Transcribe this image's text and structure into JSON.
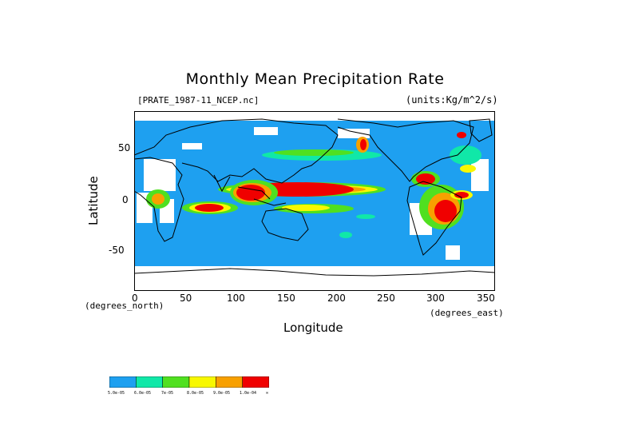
{
  "title": "Monthly Mean Precipitation Rate",
  "subtitle_left": "[PRATE_1987-11_NCEP.nc]",
  "subtitle_right": "(units:Kg/m^2/s)",
  "axes": {
    "x_label": "Longitude",
    "y_label": "Latitude",
    "x_unit": "(degrees_east)",
    "y_unit": "(degrees_north)",
    "x_ticks": [
      "0",
      "50",
      "100",
      "150",
      "200",
      "250",
      "300",
      "350"
    ],
    "y_ticks": [
      "50",
      "0",
      "-50"
    ],
    "x_range": [
      0,
      360
    ],
    "y_range": [
      -90,
      90
    ]
  },
  "legend": {
    "colors": [
      "#1ea0f0",
      "#10e8a8",
      "#50e020",
      "#f8f800",
      "#f8a000",
      "#f00000"
    ],
    "labels": [
      "5.0e-05",
      "6.0e-05",
      "7e-05",
      "8.0e-05",
      "9.0e-05",
      "1.0e-04",
      "∞"
    ]
  },
  "colors": {
    "ocean_base": "#1ea0f0",
    "no_data": "#ffffff",
    "coast": "#000000"
  }
}
